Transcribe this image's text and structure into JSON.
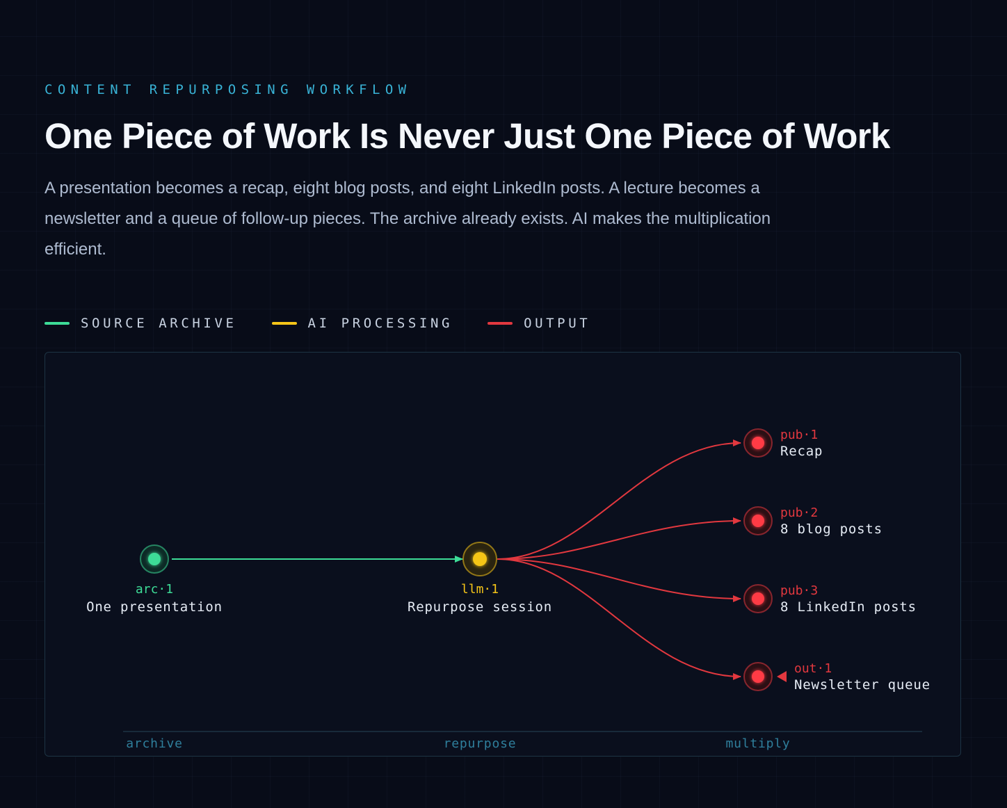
{
  "eyebrow": "CONTENT REPURPOSING WORKFLOW",
  "title": "One Piece of Work Is Never Just One Piece of Work",
  "description": "A presentation becomes a recap, eight blog posts, and eight LinkedIn posts. A lecture becomes a newsletter and a queue of follow-up pieces. The archive already exists. AI makes the multiplication efficient.",
  "legend": [
    {
      "label": "SOURCE ARCHIVE",
      "color": "#3ddc97"
    },
    {
      "label": "AI PROCESSING",
      "color": "#f5c518"
    },
    {
      "label": "OUTPUT",
      "color": "#e2383f"
    }
  ],
  "colors": {
    "source": "#3ddc97",
    "process": "#f5c518",
    "output": "#e2383f",
    "node_label": "#e6ecf5",
    "stage_label": "#2f7f9c"
  },
  "nodes": {
    "source": {
      "id": "arc·1",
      "label": "One presentation"
    },
    "process": {
      "id": "llm·1",
      "label": "Repurpose session"
    },
    "outputs": [
      {
        "id": "pub·1",
        "label": "Recap"
      },
      {
        "id": "pub·2",
        "label": "8 blog posts"
      },
      {
        "id": "pub·3",
        "label": "8 LinkedIn posts"
      },
      {
        "id": "out·1",
        "label": "Newsletter queue"
      }
    ]
  },
  "stages": [
    "archive",
    "repurpose",
    "multiply"
  ]
}
